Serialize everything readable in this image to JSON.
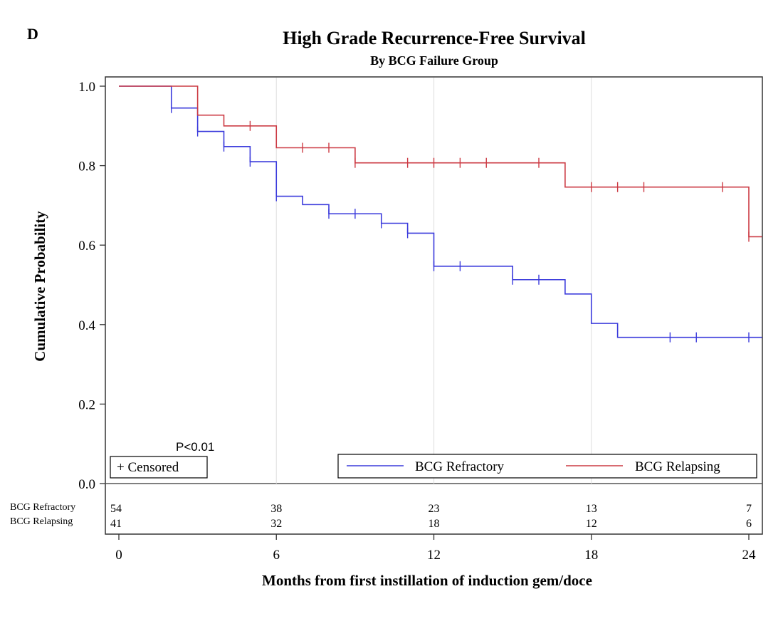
{
  "chart_data": {
    "type": "line",
    "panel_letter": "D",
    "title": "High Grade Recurrence-Free Survival",
    "subtitle": "By BCG Failure Group",
    "xlabel": "Months from first instillation of induction gem/doce",
    "ylabel": "Cumulative Probability",
    "xlim": [
      0,
      24.5
    ],
    "ylim": [
      0,
      1.05
    ],
    "x_ticks": [
      "0",
      "6",
      "12",
      "18",
      "24"
    ],
    "y_ticks": [
      "0.0",
      "0.2",
      "0.4",
      "0.6",
      "0.8",
      "1.0"
    ],
    "x_ticks_values": [
      0,
      6,
      12,
      18,
      24
    ],
    "y_ticks_values": [
      0,
      0.2,
      0.4,
      0.6,
      0.8,
      1.0
    ],
    "vertical_grid_at": [
      6,
      12,
      18
    ],
    "annotation": "P<0.01",
    "legend_placement": "bottom",
    "censored_label": "+ Censored",
    "series": [
      {
        "name": "BCG Refractory",
        "color": "#3b3bdc",
        "steps": [
          [
            0,
            1.0
          ],
          [
            2,
            0.945
          ],
          [
            3,
            0.886
          ],
          [
            4,
            0.848
          ],
          [
            5,
            0.81
          ],
          [
            6,
            0.723
          ],
          [
            7,
            0.702
          ],
          [
            8,
            0.679
          ],
          [
            10,
            0.655
          ],
          [
            11,
            0.63
          ],
          [
            12,
            0.547
          ],
          [
            15,
            0.513
          ],
          [
            17,
            0.477
          ],
          [
            18,
            0.403
          ],
          [
            19,
            0.368
          ],
          [
            24.5,
            0.368
          ]
        ],
        "censored": [
          [
            2,
            0.945
          ],
          [
            3,
            0.886
          ],
          [
            4,
            0.848
          ],
          [
            5,
            0.81
          ],
          [
            6,
            0.723
          ],
          [
            8,
            0.679
          ],
          [
            9,
            0.679
          ],
          [
            10,
            0.655
          ],
          [
            11,
            0.63
          ],
          [
            12,
            0.547
          ],
          [
            13,
            0.547
          ],
          [
            15,
            0.513
          ],
          [
            16,
            0.513
          ],
          [
            21,
            0.368
          ],
          [
            22,
            0.368
          ],
          [
            24,
            0.368
          ]
        ]
      },
      {
        "name": "BCG Relapsing",
        "color": "#cc3b44",
        "steps": [
          [
            0,
            1.0
          ],
          [
            3,
            0.927
          ],
          [
            4,
            0.9
          ],
          [
            6,
            0.845
          ],
          [
            9,
            0.807
          ],
          [
            17,
            0.746
          ],
          [
            24,
            0.621
          ],
          [
            24.5,
            0.621
          ]
        ],
        "censored": [
          [
            5,
            0.9
          ],
          [
            7,
            0.845
          ],
          [
            8,
            0.845
          ],
          [
            9,
            0.807
          ],
          [
            11,
            0.807
          ],
          [
            12,
            0.807
          ],
          [
            13,
            0.807
          ],
          [
            14,
            0.807
          ],
          [
            16,
            0.807
          ],
          [
            18,
            0.746
          ],
          [
            19,
            0.746
          ],
          [
            20,
            0.746
          ],
          [
            23,
            0.746
          ],
          [
            24,
            0.621
          ]
        ]
      }
    ],
    "risk_table": {
      "time_points": [
        0,
        6,
        12,
        18,
        24
      ],
      "rows": [
        {
          "label": "BCG Refractory",
          "values": [
            "54",
            "38",
            "23",
            "13",
            "7"
          ]
        },
        {
          "label": "BCG Relapsing",
          "values": [
            "41",
            "32",
            "18",
            "12",
            "6"
          ]
        }
      ]
    }
  }
}
